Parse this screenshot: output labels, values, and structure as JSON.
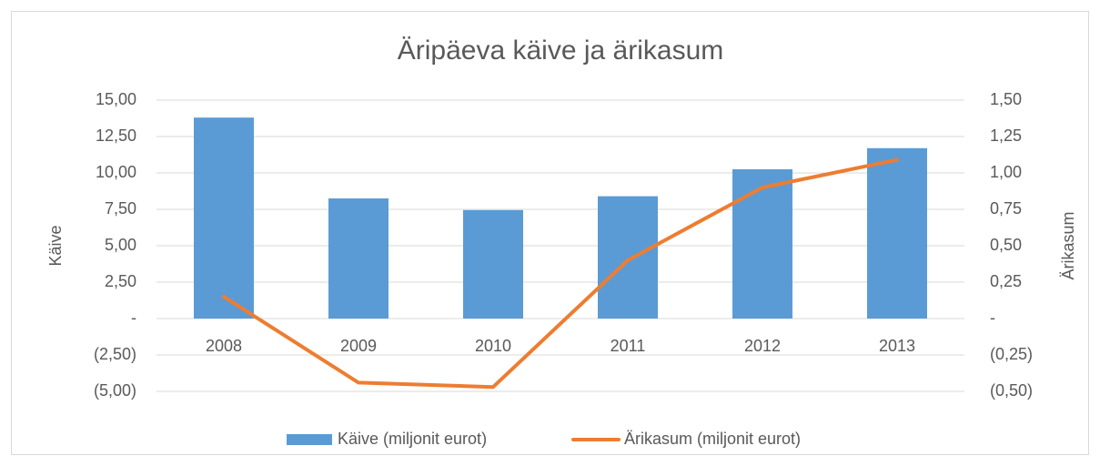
{
  "chart_data": {
    "type": "bar_line",
    "title": "Äripäeva käive ja ärikasum",
    "categories": [
      "2008",
      "2009",
      "2010",
      "2011",
      "2012",
      "2013"
    ],
    "series": [
      {
        "name": "Käive (miljonit eurot)",
        "type": "bar",
        "color": "#5b9bd5",
        "axis": "y",
        "values": [
          13.8,
          8.25,
          7.45,
          8.4,
          10.25,
          11.7
        ]
      },
      {
        "name": "Ärikasum (miljonit eurot)",
        "type": "line",
        "color": "#ed7d31",
        "axis": "y2",
        "values": [
          0.15,
          -0.44,
          -0.47,
          0.4,
          0.9,
          1.09
        ]
      }
    ],
    "ylabel": "Käive",
    "y2label": "Ärikasum",
    "ylim": [
      -5,
      15
    ],
    "yticks": [
      {
        "value": -5,
        "label": "(5,00)"
      },
      {
        "value": -2.5,
        "label": "(2,50)"
      },
      {
        "value": 0,
        "label": "-"
      },
      {
        "value": 2.5,
        "label": "2,50"
      },
      {
        "value": 5,
        "label": "5,00"
      },
      {
        "value": 7.5,
        "label": "7,50"
      },
      {
        "value": 10,
        "label": "10,00"
      },
      {
        "value": 12.5,
        "label": "12,50"
      },
      {
        "value": 15,
        "label": "15,00"
      }
    ],
    "y2lim": [
      -0.5,
      1.5
    ],
    "y2ticks": [
      {
        "value": -0.5,
        "label": "(0,50)"
      },
      {
        "value": -0.25,
        "label": "(0,25)"
      },
      {
        "value": 0,
        "label": "-"
      },
      {
        "value": 0.25,
        "label": "0,25"
      },
      {
        "value": 0.5,
        "label": "0,50"
      },
      {
        "value": 0.75,
        "label": "0,75"
      },
      {
        "value": 1,
        "label": "1,00"
      },
      {
        "value": 1.25,
        "label": "1,25"
      },
      {
        "value": 1.5,
        "label": "1,50"
      }
    ],
    "grid": true,
    "legend": "bottom"
  }
}
